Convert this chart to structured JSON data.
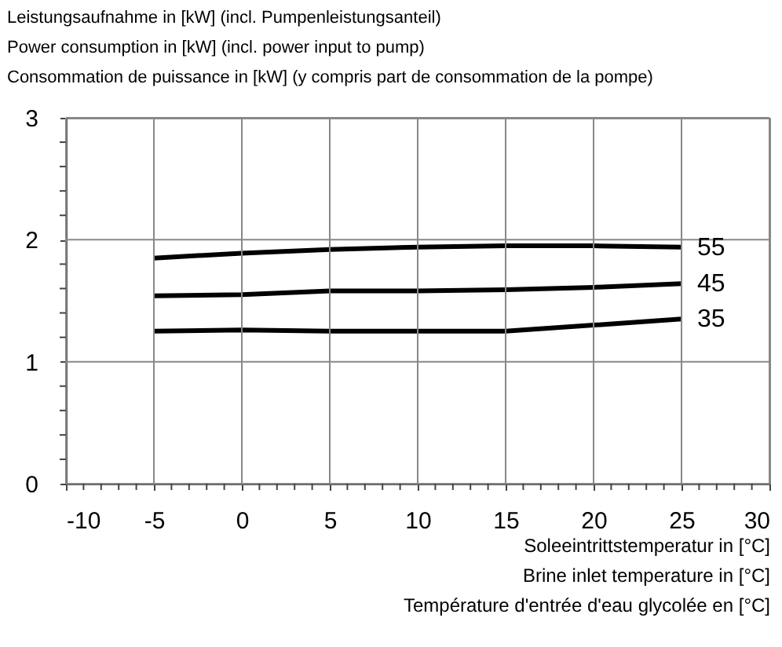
{
  "chart_data": {
    "type": "line",
    "ylabel": "Leistungsaufnahme in [kW] (incl. Pumpenleistungsanteil)\nPower consumption in [kW] (incl. power input to pump)\nConsommation de puissance in [kW] (y compris part de consommation de la pompe)",
    "xlabel": "Soleeintrittstemperatur in [°C]\nBrine inlet temperature in [°C]\nTempérature d'entrée d'eau glycolée en [°C]",
    "x": [
      -5,
      0,
      5,
      10,
      15,
      20,
      25
    ],
    "series": [
      {
        "name": "55",
        "color": "#000000",
        "values": [
          1.85,
          1.89,
          1.92,
          1.94,
          1.95,
          1.95,
          1.94
        ]
      },
      {
        "name": "45",
        "color": "#000000",
        "values": [
          1.54,
          1.55,
          1.58,
          1.58,
          1.59,
          1.61,
          1.64
        ]
      },
      {
        "name": "35",
        "color": "#000000",
        "values": [
          1.25,
          1.26,
          1.25,
          1.25,
          1.25,
          1.3,
          1.35
        ]
      }
    ],
    "xlim": [
      -10,
      30
    ],
    "xticks": [
      -10,
      {
        "value": -9,
        "label": null
      },
      {
        "value": -8,
        "label": null
      },
      {
        "value": -7,
        "label": null
      },
      {
        "value": -6,
        "label": null
      },
      -5,
      {
        "value": -4,
        "label": null
      },
      {
        "value": -3,
        "label": null
      },
      {
        "value": -2,
        "label": null
      },
      {
        "value": -1,
        "label": null
      },
      0,
      {
        "value": 1,
        "label": null
      },
      {
        "value": 2,
        "label": null
      },
      {
        "value": 3,
        "label": null
      },
      {
        "value": 4,
        "label": null
      },
      5,
      {
        "value": 6,
        "label": null
      },
      {
        "value": 7,
        "label": null
      },
      {
        "value": 8,
        "label": null
      },
      {
        "value": 9,
        "label": null
      },
      10,
      {
        "value": 11,
        "label": null
      },
      {
        "value": 12,
        "label": null
      },
      {
        "value": 13,
        "label": null
      },
      {
        "value": 14,
        "label": null
      },
      15,
      {
        "value": 16,
        "label": null
      },
      {
        "value": 17,
        "label": null
      },
      {
        "value": 18,
        "label": null
      },
      {
        "value": 19,
        "label": null
      },
      20,
      {
        "value": 21,
        "label": null
      },
      {
        "value": 22,
        "label": null
      },
      {
        "value": 23,
        "label": null
      },
      {
        "value": 24,
        "label": null
      },
      25,
      {
        "value": 26,
        "label": null
      },
      {
        "value": 27,
        "label": null
      },
      {
        "value": 28,
        "label": null
      },
      {
        "value": 29,
        "label": null
      },
      30
    ],
    "ylim": [
      0,
      3
    ],
    "yticks": [
      0,
      {
        "value": 0.2,
        "label": null
      },
      {
        "value": 0.4,
        "label": null
      },
      {
        "value": 0.6,
        "label": null
      },
      {
        "value": 0.8,
        "label": null
      },
      1,
      {
        "value": 1.2,
        "label": null
      },
      {
        "value": 1.4,
        "label": null
      },
      {
        "value": 1.6,
        "label": null
      },
      {
        "value": 1.8,
        "label": null
      },
      2,
      {
        "value": 2.2,
        "label": null
      },
      {
        "value": 2.4,
        "label": null
      },
      {
        "value": 2.6,
        "label": null
      },
      {
        "value": 2.8,
        "label": null
      },
      3
    ],
    "grid": true,
    "line_style": "solid",
    "marker": "none"
  }
}
